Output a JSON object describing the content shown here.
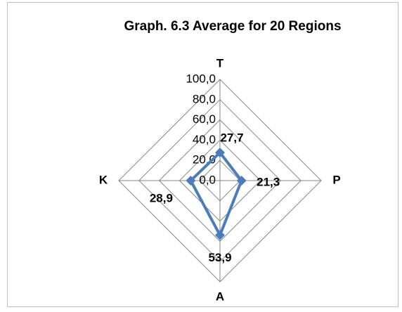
{
  "chart_data": {
    "type": "radar",
    "title": "Graph. 6.3 Average for 20 Regions",
    "categories": [
      "T",
      "P",
      "A",
      "K"
    ],
    "series": [
      {
        "color": "#4a7ebb",
        "values": [
          27.7,
          21.3,
          53.9,
          28.9
        ],
        "value_labels": [
          "27,7",
          "21,3",
          "53,9",
          "28,9"
        ]
      }
    ],
    "rlim": [
      0,
      100
    ],
    "rticks": [
      {
        "value": 0,
        "label": "0,0"
      },
      {
        "value": 20,
        "label": "20,0"
      },
      {
        "value": 40,
        "label": "40,0"
      },
      {
        "value": 60,
        "label": "60,0"
      },
      {
        "value": 80,
        "label": "80,0"
      },
      {
        "value": 100,
        "label": "100,0"
      }
    ],
    "grid": true
  }
}
